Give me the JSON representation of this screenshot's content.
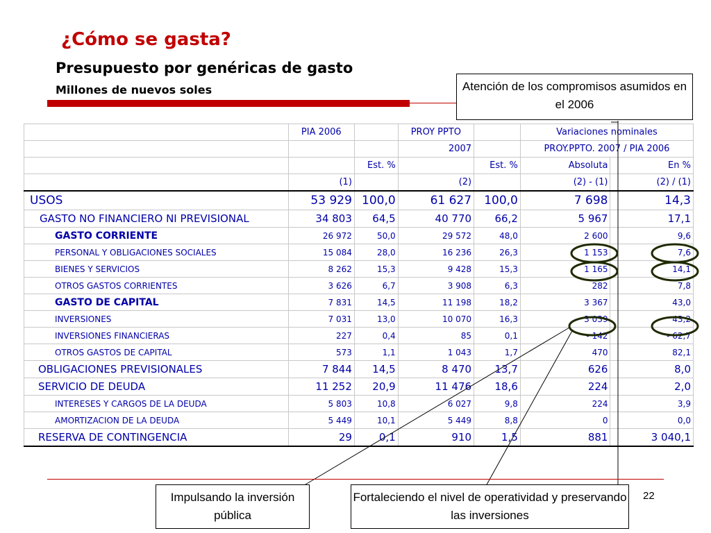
{
  "title": "¿Cómo se gasta?",
  "subtitle": "Presupuesto por genéricas de gasto",
  "units": "Millones de nuevos soles",
  "colors": {
    "accent": "#c00000",
    "table_text": "#0000a8"
  },
  "callouts": {
    "compromisos": "Atención de los compromisos asumidos en el 2006",
    "inversion": "Impulsando la inversión pública",
    "operatividad": "Fortaleciendo el nivel de operatividad y preservando las inversiones"
  },
  "page_number": "22",
  "table": {
    "header": {
      "pia": "PIA 2006",
      "proy1": "PROY PPTO",
      "proy2": "2007",
      "variaciones": "Variaciones nominales",
      "variaciones_sub": "PROY.PPTO. 2007 / PIA 2006",
      "est1": "Est. %",
      "est2": "Est. %",
      "absoluta": "Absoluta",
      "en_pct": "En %",
      "n1": "(1)",
      "n2": "(2)",
      "f1": "(2) - (1)",
      "f2": "(2) / (1)"
    },
    "rows": [
      {
        "label": "USOS",
        "pia": "53 929",
        "est1": "100,0",
        "proy": "61 627",
        "est2": "100,0",
        "abs": "7 698",
        "pct": "14,3"
      },
      {
        "label": "GASTO NO FINANCIERO NI PREVISIONAL",
        "pia": "34 803",
        "est1": "64,5",
        "proy": "40 770",
        "est2": "66,2",
        "abs": "5 967",
        "pct": "17,1"
      },
      {
        "label": "GASTO CORRIENTE",
        "pia": "26 972",
        "est1": "50,0",
        "proy": "29 572",
        "est2": "48,0",
        "abs": "2 600",
        "pct": "9,6"
      },
      {
        "label": "PERSONAL Y OBLIGACIONES SOCIALES",
        "pia": "15 084",
        "est1": "28,0",
        "proy": "16 236",
        "est2": "26,3",
        "abs": "1 153",
        "pct": "7,6"
      },
      {
        "label": "BIENES Y SERVICIOS",
        "pia": "8 262",
        "est1": "15,3",
        "proy": "9 428",
        "est2": "15,3",
        "abs": "1 165",
        "pct": "14,1"
      },
      {
        "label": "OTROS GASTOS CORRIENTES",
        "pia": "3 626",
        "est1": "6,7",
        "proy": "3 908",
        "est2": "6,3",
        "abs": "282",
        "pct": "7,8"
      },
      {
        "label": "GASTO DE CAPITAL",
        "pia": "7 831",
        "est1": "14,5",
        "proy": "11 198",
        "est2": "18,2",
        "abs": "3 367",
        "pct": "43,0"
      },
      {
        "label": "INVERSIONES",
        "pia": "7 031",
        "est1": "13,0",
        "proy": "10 070",
        "est2": "16,3",
        "abs": "3 039",
        "pct": "43,2"
      },
      {
        "label": "INVERSIONES FINANCIERAS",
        "pia": "227",
        "est1": "0,4",
        "proy": "85",
        "est2": "0,1",
        "abs": "- 142",
        "pct": "- 62,7"
      },
      {
        "label": "OTROS GASTOS DE CAPITAL",
        "pia": "573",
        "est1": "1,1",
        "proy": "1 043",
        "est2": "1,7",
        "abs": "470",
        "pct": "82,1"
      },
      {
        "label": "OBLIGACIONES PREVISIONALES",
        "pia": "7 844",
        "est1": "14,5",
        "proy": "8 470",
        "est2": "13,7",
        "abs": "626",
        "pct": "8,0"
      },
      {
        "label": "SERVICIO DE DEUDA",
        "pia": "11 252",
        "est1": "20,9",
        "proy": "11 476",
        "est2": "18,6",
        "abs": "224",
        "pct": "2,0"
      },
      {
        "label": "INTERESES Y CARGOS DE LA DEUDA",
        "pia": "5 803",
        "est1": "10,8",
        "proy": "6 027",
        "est2": "9,8",
        "abs": "224",
        "pct": "3,9"
      },
      {
        "label": "AMORTIZACION DE LA DEUDA",
        "pia": "5 449",
        "est1": "10,1",
        "proy": "5 449",
        "est2": "8,8",
        "abs": "0",
        "pct": "0,0"
      },
      {
        "label": "RESERVA DE CONTINGENCIA",
        "pia": "29",
        "est1": "0,1",
        "proy": "910",
        "est2": "1,5",
        "abs": "881",
        "pct": "3 040,1"
      }
    ]
  }
}
